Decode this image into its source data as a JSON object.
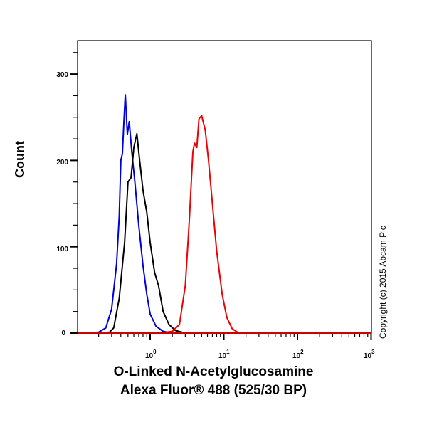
{
  "chart_data": {
    "type": "line",
    "title": "",
    "xlabel": "O-Linked N-Acetylglucosamine Alexa Fluor® 488 (525/30 BP)",
    "xlabel_line1": "O-Linked N-Acetylglucosamine",
    "xlabel_line2": "Alexa Fluor® 488 (525/30 BP)",
    "ylabel": "Count",
    "xscale": "log",
    "xlim": [
      0.1,
      1000
    ],
    "ylim": [
      0,
      340
    ],
    "x_ticks": [
      {
        "base": "10",
        "exp": "0",
        "value": 1
      },
      {
        "base": "10",
        "exp": "1",
        "value": 10
      },
      {
        "base": "10",
        "exp": "2",
        "value": 100
      },
      {
        "base": "10",
        "exp": "3",
        "value": 1000
      }
    ],
    "y_ticks": [
      0,
      100,
      200,
      300
    ],
    "grid": false,
    "legend": null,
    "annotation": "Copyright (c) 2015 Abcam Plc",
    "series": [
      {
        "name": "blue",
        "color": "#0000dd",
        "points": [
          [
            0.13,
            0
          ],
          [
            0.2,
            1
          ],
          [
            0.25,
            6
          ],
          [
            0.3,
            28
          ],
          [
            0.35,
            80
          ],
          [
            0.38,
            135
          ],
          [
            0.4,
            200
          ],
          [
            0.42,
            208
          ],
          [
            0.44,
            245
          ],
          [
            0.46,
            276
          ],
          [
            0.49,
            230
          ],
          [
            0.52,
            245
          ],
          [
            0.56,
            212
          ],
          [
            0.62,
            175
          ],
          [
            0.7,
            125
          ],
          [
            0.8,
            78
          ],
          [
            0.9,
            45
          ],
          [
            1.0,
            22
          ],
          [
            1.2,
            8
          ],
          [
            1.5,
            2
          ],
          [
            2.0,
            0
          ]
        ]
      },
      {
        "name": "black",
        "color": "#000000",
        "points": [
          [
            0.2,
            0
          ],
          [
            0.28,
            1
          ],
          [
            0.32,
            6
          ],
          [
            0.38,
            40
          ],
          [
            0.45,
            105
          ],
          [
            0.5,
            175
          ],
          [
            0.55,
            180
          ],
          [
            0.6,
            215
          ],
          [
            0.66,
            231
          ],
          [
            0.72,
            200
          ],
          [
            0.8,
            165
          ],
          [
            0.9,
            140
          ],
          [
            1.0,
            105
          ],
          [
            1.15,
            70
          ],
          [
            1.3,
            55
          ],
          [
            1.5,
            25
          ],
          [
            1.8,
            10
          ],
          [
            2.2,
            3
          ],
          [
            3.0,
            0
          ]
        ]
      },
      {
        "name": "red",
        "color": "#ee0000",
        "points": [
          [
            1.3,
            0
          ],
          [
            2.0,
            2
          ],
          [
            2.5,
            10
          ],
          [
            3.0,
            55
          ],
          [
            3.4,
            130
          ],
          [
            3.8,
            210
          ],
          [
            4.0,
            220
          ],
          [
            4.3,
            215
          ],
          [
            4.6,
            248
          ],
          [
            5.0,
            252
          ],
          [
            5.6,
            235
          ],
          [
            6.2,
            200
          ],
          [
            7.0,
            150
          ],
          [
            8.0,
            95
          ],
          [
            9.5,
            45
          ],
          [
            11,
            18
          ],
          [
            13,
            5
          ],
          [
            16,
            0
          ]
        ]
      },
      {
        "name": "baseline",
        "color": "#cc0000",
        "points": [
          [
            0.1,
            0
          ],
          [
            1000,
            0
          ]
        ]
      }
    ]
  },
  "axis": {
    "y_labels": [
      "300",
      "200",
      "100",
      "0"
    ],
    "x_base": [
      "10",
      "10",
      "10",
      "10"
    ],
    "x_exp": [
      "0",
      "1",
      "2",
      "3"
    ]
  },
  "labels": {
    "ylabel": "Count",
    "xlabel_line1": "O-Linked N-Acetylglucosamine",
    "xlabel_line2": "Alexa Fluor® 488 (525/30 BP)",
    "copyright": "Copyright (c) 2015 Abcam Plc"
  }
}
